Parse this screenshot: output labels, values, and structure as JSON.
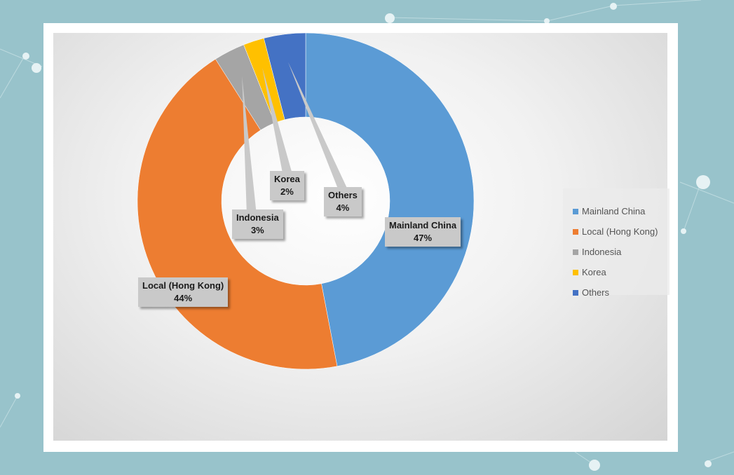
{
  "chart_data": {
    "type": "donut",
    "categories": [
      "Mainland China",
      "Local (Hong Kong)",
      "Indonesia",
      "Korea",
      "Others"
    ],
    "values": [
      47,
      44,
      3,
      2,
      4
    ],
    "value_suffix": "%",
    "colors": [
      "#5b9bd5",
      "#ed7d31",
      "#a5a5a5",
      "#ffc000",
      "#4472c4"
    ],
    "legend_position": "right",
    "data_labels": [
      {
        "name": "Mainland China",
        "value": "47%"
      },
      {
        "name": "Local (Hong Kong)",
        "value": "44%"
      },
      {
        "name": "Indonesia",
        "value": "3%"
      },
      {
        "name": "Korea",
        "value": "2%"
      },
      {
        "name": "Others",
        "value": "4%"
      }
    ]
  }
}
